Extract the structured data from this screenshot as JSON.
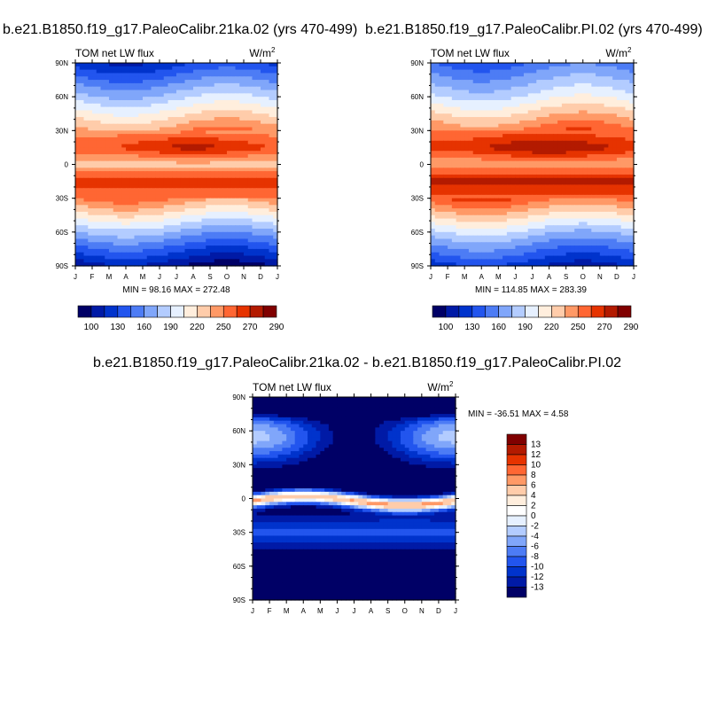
{
  "titles": {
    "left": "b.e21.B1850.f19_g17.PaleoCalibr.21ka.02 (yrs 470-499)",
    "right": "b.e21.B1850.f19_g17.PaleoCalibr.PI.02 (yrs 470-499)",
    "bottom": "b.e21.B1850.f19_g17.PaleoCalibr.21ka.02 - b.e21.B1850.f19_g17.PaleoCalibr.PI.02"
  },
  "chart_data": [
    {
      "type": "heatmap",
      "variable": "TOM net LW flux",
      "units": "W/m",
      "units_exponent": "2",
      "x_ticks": [
        "J",
        "F",
        "M",
        "A",
        "M",
        "J",
        "J",
        "A",
        "S",
        "O",
        "N",
        "D",
        "J"
      ],
      "y_ticks": [
        "90N",
        "60N",
        "30N",
        "0",
        "30S",
        "60S",
        "90S"
      ],
      "stats": "MIN = 98.16 MAX = 272.48",
      "colorbar": {
        "orientation": "horizontal",
        "labels": [
          "100",
          "130",
          "160",
          "190",
          "220",
          "250",
          "270",
          "290"
        ],
        "colors": [
          "#000066",
          "#001aa6",
          "#0033cc",
          "#2255ee",
          "#4d7cf5",
          "#80a6fa",
          "#b3ccff",
          "#e6f0ff",
          "#ffeedd",
          "#ffccaa",
          "#ff9966",
          "#ff6633",
          "#e63300",
          "#b31a00",
          "#800000"
        ]
      },
      "lat_profile": [
        {
          "lat": 90,
          "value": 130
        },
        {
          "lat": 60,
          "value": 185
        },
        {
          "lat": 30,
          "value": 240
        },
        {
          "lat": 15,
          "value": 268
        },
        {
          "lat": 0,
          "value": 225
        },
        {
          "lat": -15,
          "value": 270
        },
        {
          "lat": -30,
          "value": 245
        },
        {
          "lat": -60,
          "value": 175
        },
        {
          "lat": -90,
          "value": 110
        }
      ]
    },
    {
      "type": "heatmap",
      "variable": "TOM net LW flux",
      "units": "W/m",
      "units_exponent": "2",
      "x_ticks": [
        "J",
        "F",
        "M",
        "A",
        "M",
        "J",
        "J",
        "A",
        "S",
        "O",
        "N",
        "D",
        "J"
      ],
      "y_ticks": [
        "90N",
        "60N",
        "30N",
        "0",
        "30S",
        "60S",
        "90S"
      ],
      "stats": "MIN = 114.85 MAX = 283.39",
      "colorbar": {
        "orientation": "horizontal",
        "labels": [
          "100",
          "130",
          "160",
          "190",
          "220",
          "250",
          "270",
          "290"
        ],
        "colors": [
          "#000066",
          "#001aa6",
          "#0033cc",
          "#2255ee",
          "#4d7cf5",
          "#80a6fa",
          "#b3ccff",
          "#e6f0ff",
          "#ffeedd",
          "#ffccaa",
          "#ff9966",
          "#ff6633",
          "#e63300",
          "#b31a00",
          "#800000"
        ]
      },
      "lat_profile": [
        {
          "lat": 90,
          "value": 150
        },
        {
          "lat": 60,
          "value": 195
        },
        {
          "lat": 30,
          "value": 250
        },
        {
          "lat": 15,
          "value": 278
        },
        {
          "lat": 0,
          "value": 235
        },
        {
          "lat": -15,
          "value": 280
        },
        {
          "lat": -30,
          "value": 255
        },
        {
          "lat": -60,
          "value": 185
        },
        {
          "lat": -90,
          "value": 125
        }
      ]
    },
    {
      "type": "heatmap",
      "variable": "TOM net LW flux",
      "units": "W/m",
      "units_exponent": "2",
      "x_ticks": [
        "J",
        "F",
        "M",
        "A",
        "M",
        "J",
        "J",
        "A",
        "S",
        "O",
        "N",
        "D",
        "J"
      ],
      "y_ticks": [
        "90N",
        "60N",
        "30N",
        "0",
        "30S",
        "60S",
        "90S"
      ],
      "stats": "MIN = -36.51 MAX =  4.58",
      "colorbar": {
        "orientation": "vertical",
        "labels": [
          "13",
          "12",
          "10",
          "8",
          "6",
          "4",
          "2",
          "0",
          "-2",
          "-4",
          "-6",
          "-8",
          "-10",
          "-12",
          "-13"
        ],
        "colors": [
          "#800000",
          "#b31a00",
          "#e63300",
          "#ff6633",
          "#ff9966",
          "#ffccaa",
          "#ffeedd",
          "#ffffff",
          "#e6f0ff",
          "#b3ccff",
          "#80a6fa",
          "#4d7cf5",
          "#2255ee",
          "#0033cc",
          "#001aa6",
          "#000066"
        ]
      }
    }
  ]
}
